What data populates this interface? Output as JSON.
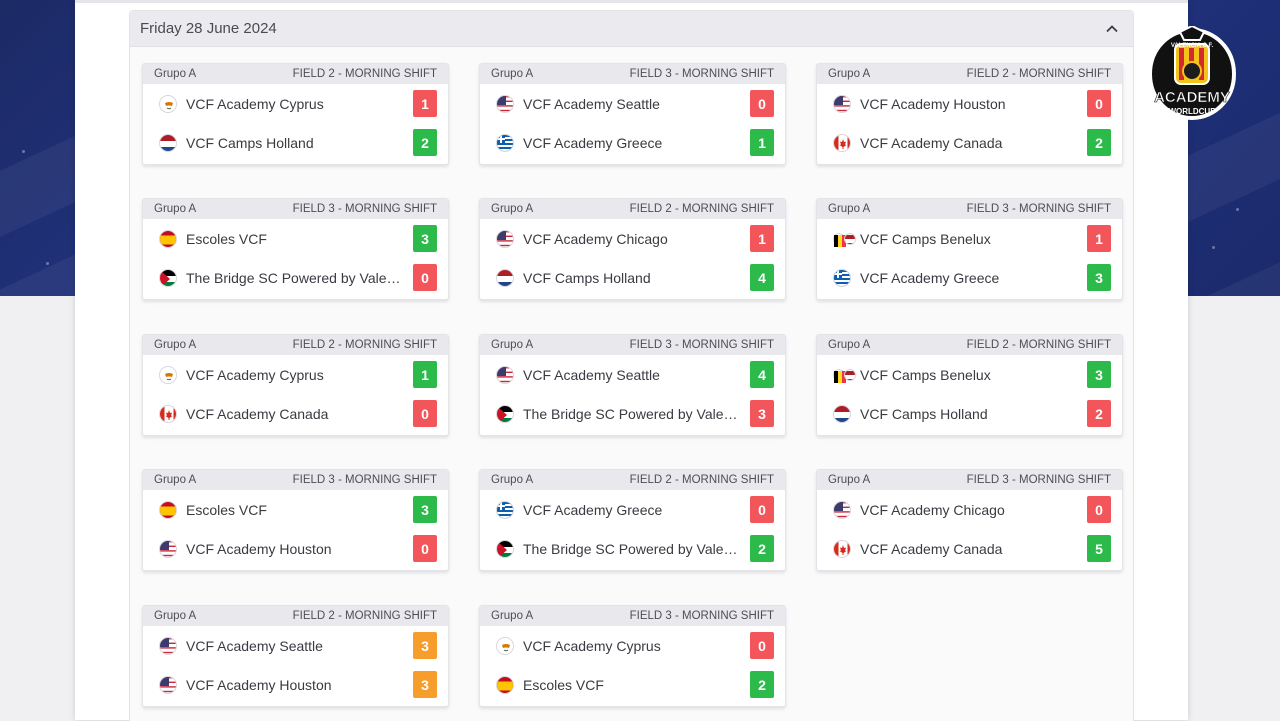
{
  "day": {
    "title": "Friday 28 June 2024"
  },
  "colors": {
    "win": "#2cbb4b",
    "loss": "#f2565a",
    "draw": "#f79d2c",
    "band": "#24378a"
  },
  "logo": {
    "line1": "VALENCIA C.F.",
    "line2": "ACADEMY",
    "line3": "WORLDCUP"
  },
  "matches": [
    {
      "group": "Grupo A",
      "field": "FIELD 2 - MORNING SHIFT",
      "home": {
        "name": "VCF Academy Cyprus",
        "flag": "cyprus-flag-icon",
        "score": "1",
        "result": "loss"
      },
      "away": {
        "name": "VCF Camps Holland",
        "flag": "netherlands-flag-icon",
        "score": "2",
        "result": "win"
      }
    },
    {
      "group": "Grupo A",
      "field": "FIELD 3 - MORNING SHIFT",
      "home": {
        "name": "VCF Academy Seattle",
        "flag": "usa-flag-icon",
        "score": "0",
        "result": "loss"
      },
      "away": {
        "name": "VCF Academy Greece",
        "flag": "greece-flag-icon",
        "score": "1",
        "result": "win"
      }
    },
    {
      "group": "Grupo A",
      "field": "FIELD 2 - MORNING SHIFT",
      "home": {
        "name": "VCF Academy Houston",
        "flag": "usa-flag-icon",
        "score": "0",
        "result": "loss"
      },
      "away": {
        "name": "VCF Academy Canada",
        "flag": "canada-flag-icon",
        "score": "2",
        "result": "win"
      }
    },
    {
      "group": "Grupo A",
      "field": "FIELD 3 - MORNING SHIFT",
      "home": {
        "name": "Escoles VCF",
        "flag": "spain-flag-icon",
        "score": "3",
        "result": "win"
      },
      "away": {
        "name": "The Bridge SC Powered by Valencia CF",
        "flag": "jordan-flag-icon",
        "score": "0",
        "result": "loss"
      }
    },
    {
      "group": "Grupo A",
      "field": "FIELD 2 - MORNING SHIFT",
      "home": {
        "name": "VCF Academy Chicago",
        "flag": "usa-flag-icon",
        "score": "1",
        "result": "loss"
      },
      "away": {
        "name": "VCF Camps Holland",
        "flag": "netherlands-flag-icon",
        "score": "4",
        "result": "win"
      }
    },
    {
      "group": "Grupo A",
      "field": "FIELD 3 - MORNING SHIFT",
      "home": {
        "name": "VCF Camps Benelux",
        "flag": "benelux-flag-icon",
        "score": "1",
        "result": "loss"
      },
      "away": {
        "name": "VCF Academy Greece",
        "flag": "greece-flag-icon",
        "score": "3",
        "result": "win"
      }
    },
    {
      "group": "Grupo A",
      "field": "FIELD 2 - MORNING SHIFT",
      "home": {
        "name": "VCF Academy Cyprus",
        "flag": "cyprus-flag-icon",
        "score": "1",
        "result": "win"
      },
      "away": {
        "name": "VCF Academy Canada",
        "flag": "canada-flag-icon",
        "score": "0",
        "result": "loss"
      }
    },
    {
      "group": "Grupo A",
      "field": "FIELD 3 - MORNING SHIFT",
      "home": {
        "name": "VCF Academy Seattle",
        "flag": "usa-flag-icon",
        "score": "4",
        "result": "win"
      },
      "away": {
        "name": "The Bridge SC Powered by Valencia CF",
        "flag": "jordan-flag-icon",
        "score": "3",
        "result": "loss"
      }
    },
    {
      "group": "Grupo A",
      "field": "FIELD 2 - MORNING SHIFT",
      "home": {
        "name": "VCF Camps Benelux",
        "flag": "benelux-flag-icon",
        "score": "3",
        "result": "win"
      },
      "away": {
        "name": "VCF Camps Holland",
        "flag": "netherlands-flag-icon",
        "score": "2",
        "result": "loss"
      }
    },
    {
      "group": "Grupo A",
      "field": "FIELD 3 - MORNING SHIFT",
      "home": {
        "name": "Escoles VCF",
        "flag": "spain-flag-icon",
        "score": "3",
        "result": "win"
      },
      "away": {
        "name": "VCF Academy Houston",
        "flag": "usa-flag-icon",
        "score": "0",
        "result": "loss"
      }
    },
    {
      "group": "Grupo A",
      "field": "FIELD 2 - MORNING SHIFT",
      "home": {
        "name": "VCF Academy Greece",
        "flag": "greece-flag-icon",
        "score": "0",
        "result": "loss"
      },
      "away": {
        "name": "The Bridge SC Powered by Valencia CF",
        "flag": "jordan-flag-icon",
        "score": "2",
        "result": "win"
      }
    },
    {
      "group": "Grupo A",
      "field": "FIELD 3 - MORNING SHIFT",
      "home": {
        "name": "VCF Academy Chicago",
        "flag": "usa-flag-icon",
        "score": "0",
        "result": "loss"
      },
      "away": {
        "name": "VCF Academy Canada",
        "flag": "canada-flag-icon",
        "score": "5",
        "result": "win"
      }
    },
    {
      "group": "Grupo A",
      "field": "FIELD 2 - MORNING SHIFT",
      "home": {
        "name": "VCF Academy Seattle",
        "flag": "usa-flag-icon",
        "score": "3",
        "result": "draw"
      },
      "away": {
        "name": "VCF Academy Houston",
        "flag": "usa-flag-icon",
        "score": "3",
        "result": "draw"
      }
    },
    {
      "group": "Grupo A",
      "field": "FIELD 3 - MORNING SHIFT",
      "home": {
        "name": "VCF Academy Cyprus",
        "flag": "cyprus-flag-icon",
        "score": "0",
        "result": "loss"
      },
      "away": {
        "name": "Escoles VCF",
        "flag": "spain-flag-icon",
        "score": "2",
        "result": "win"
      }
    }
  ]
}
